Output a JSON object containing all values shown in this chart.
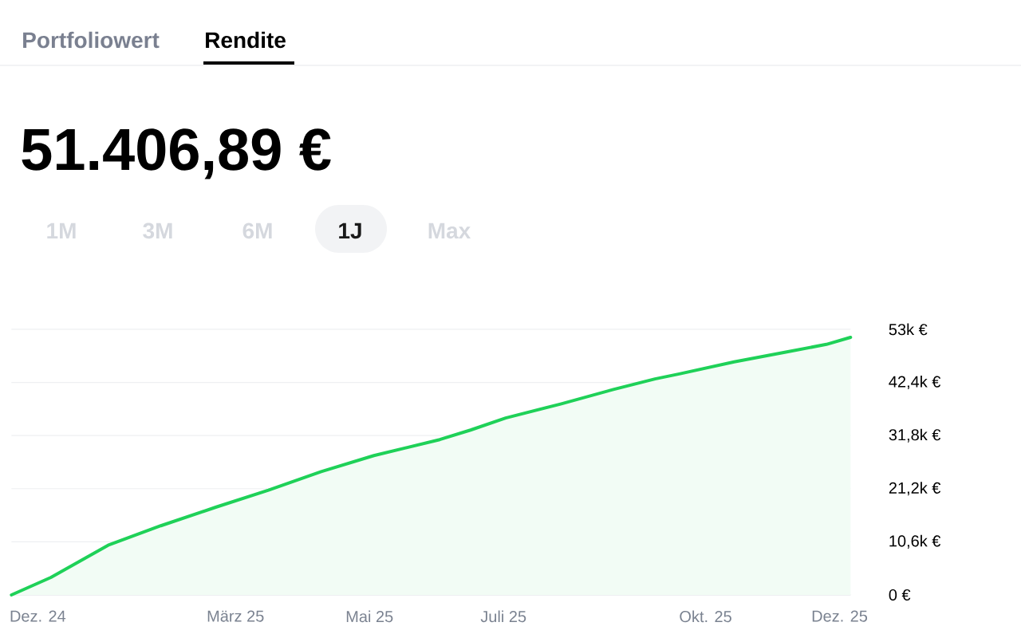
{
  "chart_data": {
    "type": "area",
    "title": "51.406,89 €",
    "annotations": [
      "Portfoliowert",
      "Rendite",
      "1M",
      "3M",
      "6M",
      "1J",
      "Max"
    ],
    "x": [
      "2024-12-03",
      "2024-12-21",
      "2025-01-16",
      "2025-02-09",
      "2025-03-06",
      "2025-03-30",
      "2025-04-23",
      "2025-05-17",
      "2025-06-16",
      "2025-06-30",
      "2025-07-16",
      "2025-08-10",
      "2025-09-03",
      "2025-09-22",
      "2025-10-03",
      "2025-10-28",
      "2025-11-21",
      "2025-12-09",
      "2025-12-20"
    ],
    "values": [
      0,
      3500,
      9900,
      13800,
      17500,
      20900,
      24600,
      27800,
      31000,
      32900,
      35300,
      38100,
      41000,
      43100,
      44100,
      46500,
      48500,
      50000,
      51400
    ],
    "color": "#1fd158",
    "xlim": [
      "2024-12-03",
      "2025-12-20"
    ],
    "ylim": [
      0,
      53000
    ],
    "xticks": [
      {
        "value": "2024-12-15",
        "label": "Dez. 24"
      },
      {
        "value": "2025-03-15",
        "label": "März 25"
      },
      {
        "value": "2025-05-15",
        "label": "Mai 25"
      },
      {
        "value": "2025-07-15",
        "label": "Juli 25"
      },
      {
        "value": "2025-10-15",
        "label": "Okt. 25"
      },
      {
        "value": "2025-12-15",
        "label": "Dez. 25"
      }
    ],
    "yticks": [
      {
        "value": 0,
        "label": "0 €"
      },
      {
        "value": 10600,
        "label": "10,6k €"
      },
      {
        "value": 21200,
        "label": "21,2k €"
      },
      {
        "value": 31800,
        "label": "31,8k €"
      },
      {
        "value": 42400,
        "label": "42,4k €"
      },
      {
        "value": 53000,
        "label": "53k €"
      }
    ],
    "grid": "y"
  }
}
